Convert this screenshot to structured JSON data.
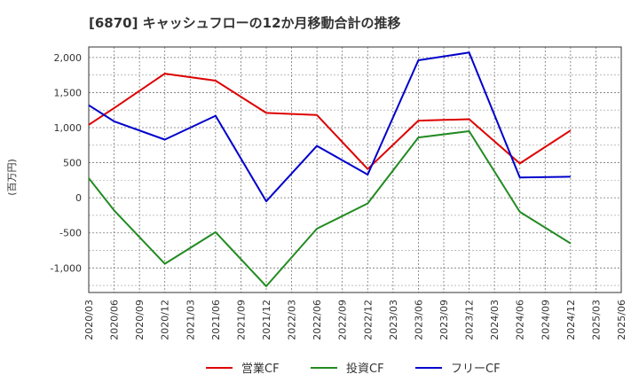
{
  "chart_data": {
    "type": "line",
    "title": "[6870]  キャッシュフローの12か月移動合計の推移",
    "ylabel": "(百万円)",
    "xlabel": "",
    "ylim": [
      -1350,
      2150
    ],
    "yticks": [
      2000,
      1500,
      1000,
      500,
      0,
      -500,
      -1000
    ],
    "ytick_labels": [
      "2,000",
      "1,500",
      "1,000",
      "500",
      "0",
      "-500",
      "-1,000"
    ],
    "x": [
      "2020/03",
      "2020/06",
      "2020/09",
      "2020/12",
      "2021/03",
      "2021/06",
      "2021/09",
      "2021/12",
      "2022/03",
      "2022/06",
      "2022/09",
      "2022/12",
      "2023/03",
      "2023/06",
      "2023/09",
      "2023/12",
      "2024/03",
      "2024/06",
      "2024/09",
      "2024/12",
      "2025/03",
      "2025/06"
    ],
    "grid": true,
    "legend_position": "bottom",
    "series": [
      {
        "name": "営業CF",
        "color": "#dd0000",
        "values": [
          1040,
          1280,
          null,
          1770,
          null,
          1670,
          null,
          1210,
          null,
          1180,
          null,
          410,
          null,
          1100,
          null,
          1120,
          null,
          490,
          null,
          960,
          null,
          null
        ]
      },
      {
        "name": "投資CF",
        "color": "#228b22",
        "values": [
          280,
          -180,
          null,
          -940,
          null,
          -490,
          null,
          -1260,
          null,
          -440,
          null,
          -80,
          null,
          860,
          null,
          950,
          null,
          -200,
          null,
          -650,
          null,
          null
        ]
      },
      {
        "name": "フリーCF",
        "color": "#0000cc",
        "values": [
          1320,
          1090,
          null,
          830,
          null,
          1170,
          null,
          -50,
          null,
          740,
          null,
          330,
          null,
          1960,
          null,
          2070,
          null,
          290,
          null,
          300,
          null,
          null
        ]
      }
    ]
  }
}
